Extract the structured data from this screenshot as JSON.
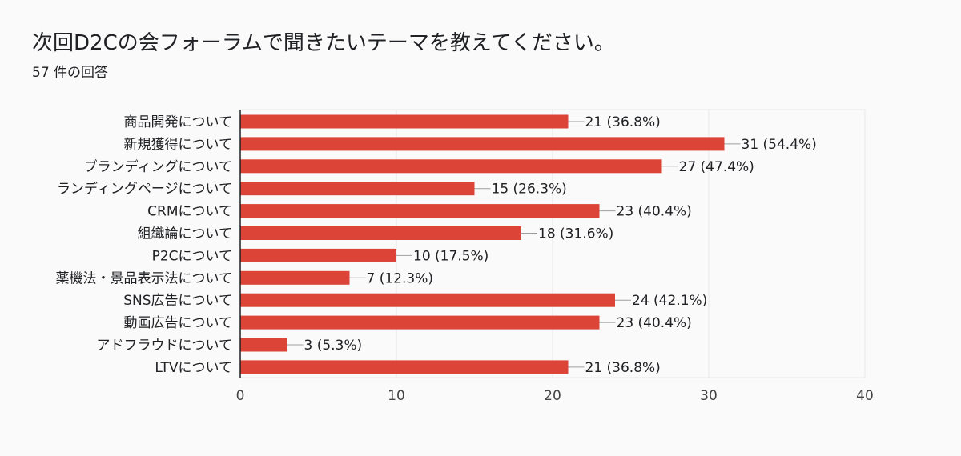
{
  "title": "次回D2Cの会フォーラムで聞きたいテーマを教えてください。",
  "response_count": "57 件の回答",
  "colors": {
    "bar": "#db4437",
    "grid": "#e8e8e8",
    "axis": "#202124",
    "background": "#fafafa"
  },
  "chart_data": {
    "type": "bar",
    "orientation": "horizontal",
    "categories": [
      "商品開発について",
      "新規獲得について",
      "ブランディングについて",
      "ランディングページについて",
      "CRMについて",
      "組織論について",
      "P2Cについて",
      "薬機法・景品表示法について",
      "SNS広告について",
      "動画広告について",
      "アドフラウドについて",
      "LTVについて"
    ],
    "values": [
      21,
      31,
      27,
      15,
      23,
      18,
      10,
      7,
      24,
      23,
      3,
      21
    ],
    "data_labels": [
      "21 (36.8%)",
      "31 (54.4%)",
      "27 (47.4%)",
      "15 (26.3%)",
      "23 (40.4%)",
      "18 (31.6%)",
      "10 (17.5%)",
      "7 (12.3%)",
      "24 (42.1%)",
      "23 (40.4%)",
      "3 (5.3%)",
      "21 (36.8%)"
    ],
    "x_ticks": [
      "0",
      "10",
      "20",
      "30",
      "40"
    ],
    "xlim": [
      0,
      40
    ],
    "grid": true,
    "legend": "none"
  }
}
